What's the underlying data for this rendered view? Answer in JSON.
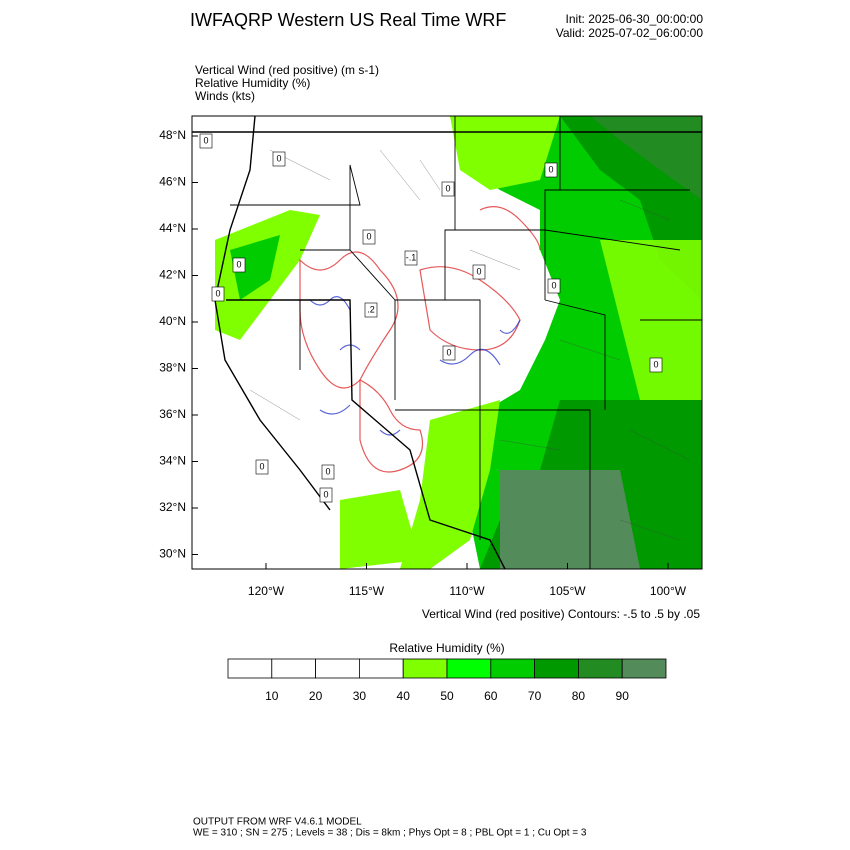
{
  "header": {
    "title": "IWFAQRP Western US Real Time WRF",
    "init": "Init: 2025-06-30_00:00:00",
    "valid": "Valid: 2025-07-02_06:00:00"
  },
  "fields": [
    "Vertical Wind (red positive)   (m s-1)",
    "Relative Humidity   (%)",
    "Winds   (kts)"
  ],
  "map": {
    "lat_labels": [
      "48°N",
      "46°N",
      "44°N",
      "42°N",
      "40°N",
      "38°N",
      "36°N",
      "34°N",
      "32°N",
      "30°N"
    ],
    "lon_labels": [
      "120°W",
      "115°W",
      "110°W",
      "105°W",
      "100°W"
    ],
    "contour_labels": [
      "0",
      "0",
      "0",
      "0",
      "0",
      "-.1",
      "0",
      "0",
      "0",
      ".2",
      "0",
      "0",
      "0",
      "0",
      "0",
      "0"
    ]
  },
  "contour_note": "Vertical Wind (red positive) Contours: -.5 to .5 by .05",
  "colorbar": {
    "title": "Relative Humidity   (%)",
    "labels": [
      "10",
      "20",
      "30",
      "40",
      "50",
      "60",
      "70",
      "80",
      "90"
    ],
    "colors": [
      "#ffffff",
      "#ffffff",
      "#ffffff",
      "#ffffff",
      "#80ff00",
      "#00ff00",
      "#00cc00",
      "#009a00",
      "#228b22",
      "#548b5a"
    ]
  },
  "footer": {
    "model": "OUTPUT FROM WRF V4.6.1 MODEL",
    "settings": "WE = 310 ; SN = 275 ; Levels = 38 ; Dis = 8km ; Phys Opt = 8 ; PBL Opt = 1 ; Cu Opt = 3"
  }
}
